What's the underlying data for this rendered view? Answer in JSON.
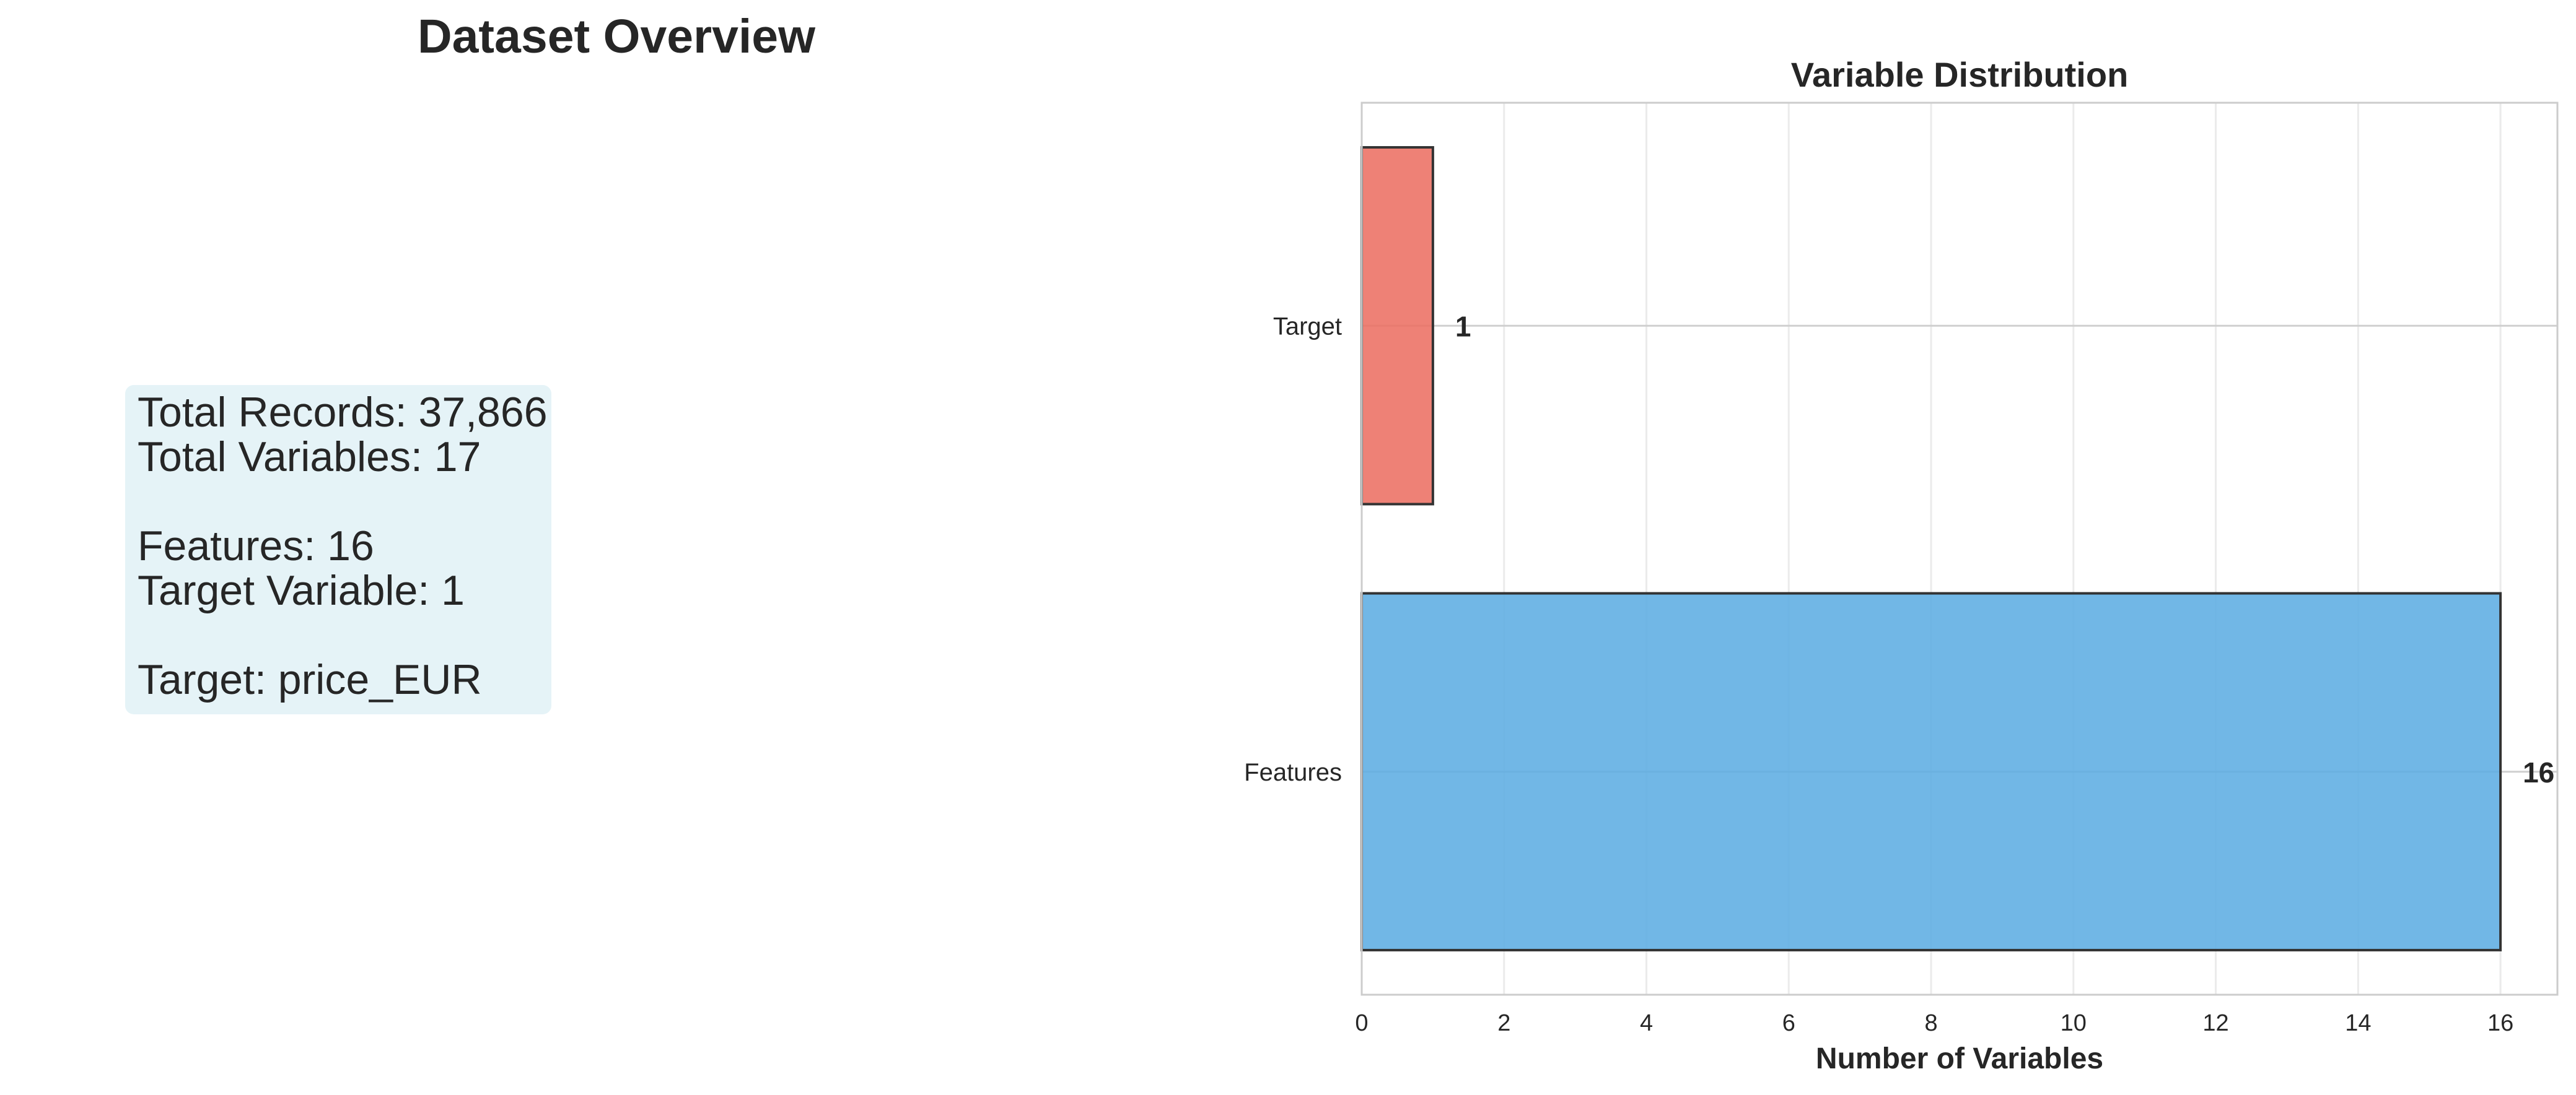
{
  "overview": {
    "title": "Dataset Overview",
    "lines": [
      "Total Records: 37,866",
      "Total Variables: 17",
      "Features: 16",
      "Target Variable: 1",
      "Target: price_EUR"
    ]
  },
  "chart_data": {
    "type": "bar",
    "orientation": "horizontal",
    "title": "Variable Distribution",
    "xlabel": "Number of Variables",
    "ylabel": "",
    "categories": [
      "Features",
      "Target"
    ],
    "values": [
      16,
      1
    ],
    "value_labels": [
      "16",
      "1"
    ],
    "colors": [
      "#5dade2",
      "#ec7063"
    ],
    "xlim": [
      0,
      16.8
    ],
    "xticks": [
      "0",
      "2",
      "4",
      "6",
      "8",
      "10",
      "12",
      "14",
      "16"
    ],
    "grid": true
  }
}
